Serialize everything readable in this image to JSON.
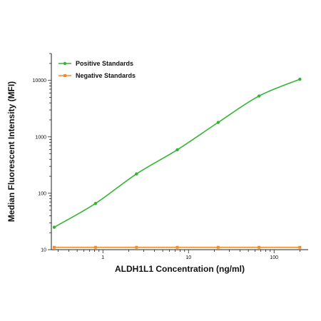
{
  "chart_data": {
    "type": "line",
    "xlabel": "ALDH1L1 Concentration (ng/ml)",
    "ylabel": "Median Fluorescent Intensity (MFI)",
    "xscale": "log",
    "yscale": "log",
    "xlim": [
      0.25,
      250
    ],
    "ylim": [
      10,
      30000
    ],
    "xticks": [
      {
        "value": 1,
        "label": "1"
      },
      {
        "value": 10,
        "label": "10"
      },
      {
        "value": 100,
        "label": "100"
      }
    ],
    "yticks": [
      {
        "value": 10,
        "label": "10"
      },
      {
        "value": 100,
        "label": "100"
      },
      {
        "value": 1000,
        "label": "1000"
      },
      {
        "value": 10000,
        "label": "10000"
      }
    ],
    "legend_position": "top-left",
    "grid": false,
    "series": [
      {
        "name": "Positive Standards",
        "color": "#33b533",
        "marker": "circle",
        "x": [
          0.27,
          0.82,
          2.47,
          7.4,
          22.2,
          66.7,
          200
        ],
        "y": [
          25,
          66,
          220,
          590,
          1800,
          5300,
          10500
        ]
      },
      {
        "name": "Negative Standards",
        "color": "#f28c28",
        "marker": "square",
        "x": [
          0.27,
          0.82,
          2.47,
          7.4,
          22.2,
          66.7,
          200
        ],
        "y": [
          11,
          11,
          11,
          11,
          11,
          11,
          11
        ]
      }
    ]
  }
}
